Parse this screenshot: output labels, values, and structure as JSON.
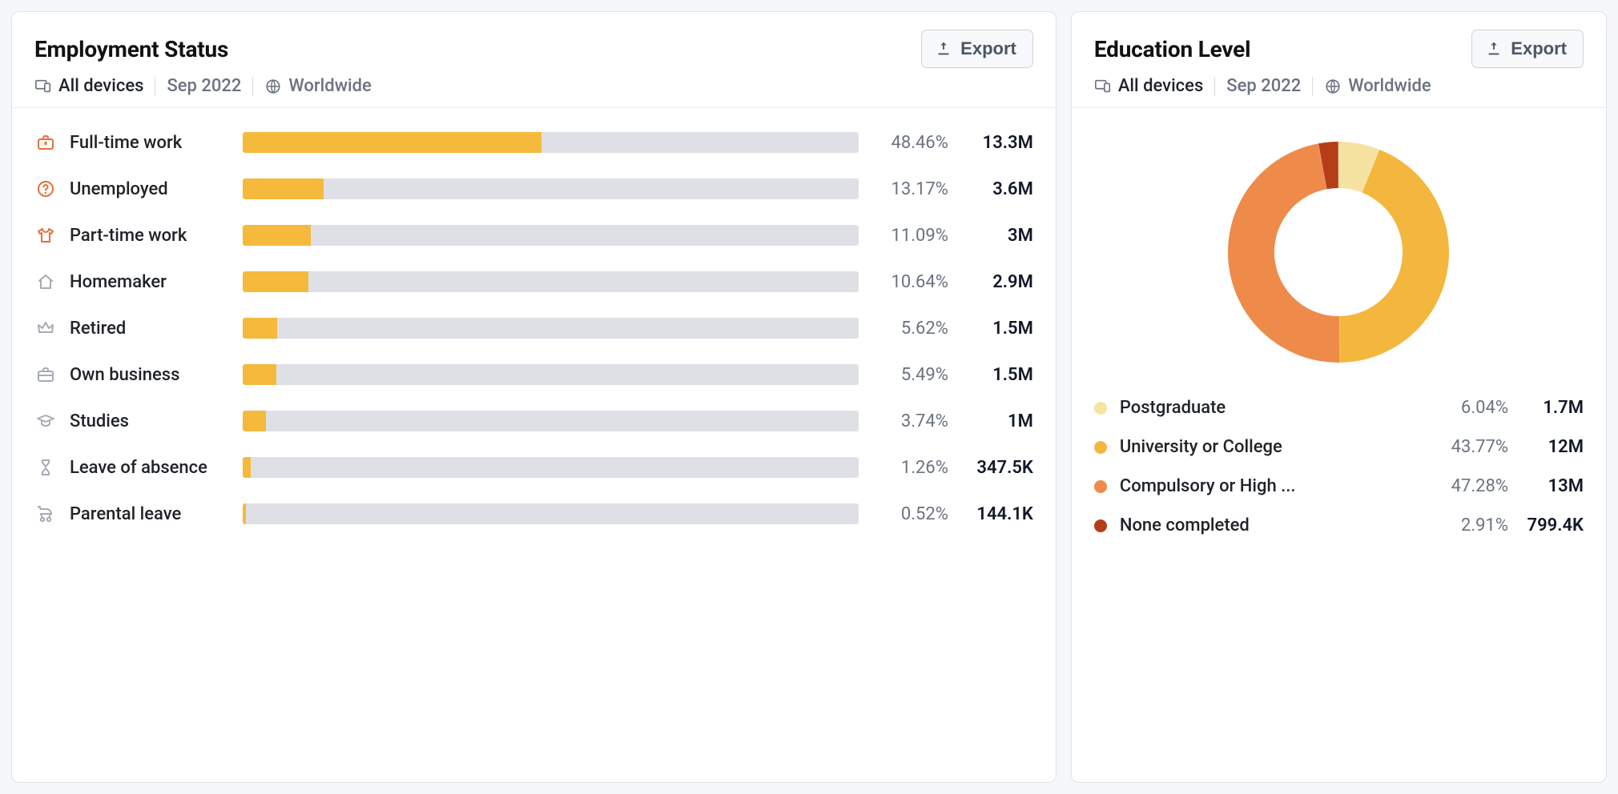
{
  "ui": {
    "export_label": "Export",
    "devices_label": "All devices",
    "period_label": "Sep 2022",
    "region_label": "Worldwide"
  },
  "colors": {
    "background_page": "#f6f7f9",
    "card_bg": "#ffffff",
    "card_border": "#dfe2e8",
    "text_primary": "#111827",
    "text_muted": "#6b7280",
    "bar_track": "#dee0e6",
    "bar_fill": "#f5b93c",
    "icon_orange": "#e96f3a",
    "icon_gray": "#a6abb4"
  },
  "employment": {
    "title": "Employment Status",
    "bar_max": 100,
    "items": [
      {
        "icon": "briefcase-fill",
        "icon_color": "#e96f3a",
        "label": "Full-time work",
        "pct": "48.46%",
        "pct_num": 48.46,
        "value": "13.3M"
      },
      {
        "icon": "question-circle",
        "icon_color": "#e96f3a",
        "label": "Unemployed",
        "pct": "13.17%",
        "pct_num": 13.17,
        "value": "3.6M"
      },
      {
        "icon": "tshirt",
        "icon_color": "#e96f3a",
        "label": "Part-time work",
        "pct": "11.09%",
        "pct_num": 11.09,
        "value": "3M"
      },
      {
        "icon": "home",
        "icon_color": "#a6abb4",
        "label": "Homemaker",
        "pct": "10.64%",
        "pct_num": 10.64,
        "value": "2.9M"
      },
      {
        "icon": "crown",
        "icon_color": "#a6abb4",
        "label": "Retired",
        "pct": "5.62%",
        "pct_num": 5.62,
        "value": "1.5M"
      },
      {
        "icon": "briefcase",
        "icon_color": "#a6abb4",
        "label": "Own business",
        "pct": "5.49%",
        "pct_num": 5.49,
        "value": "1.5M"
      },
      {
        "icon": "gradcap",
        "icon_color": "#a6abb4",
        "label": "Studies",
        "pct": "3.74%",
        "pct_num": 3.74,
        "value": "1M"
      },
      {
        "icon": "hourglass",
        "icon_color": "#a6abb4",
        "label": "Leave of absence",
        "pct": "1.26%",
        "pct_num": 1.26,
        "value": "347.5K"
      },
      {
        "icon": "stroller",
        "icon_color": "#a6abb4",
        "label": "Parental leave",
        "pct": "0.52%",
        "pct_num": 0.52,
        "value": "144.1K"
      }
    ]
  },
  "education": {
    "title": "Education Level",
    "donut": {
      "inner_ratio": 0.58,
      "start_angle_deg": 0
    },
    "items": [
      {
        "label": "Postgraduate",
        "pct": "6.04%",
        "pct_num": 6.04,
        "value": "1.7M",
        "color": "#f6e3a2"
      },
      {
        "label": "University or College",
        "pct": "43.77%",
        "pct_num": 43.77,
        "value": "12M",
        "color": "#f3b73e"
      },
      {
        "label": "Compulsory or High ...",
        "pct": "47.28%",
        "pct_num": 47.28,
        "value": "13M",
        "color": "#ee8b4a"
      },
      {
        "label": "None completed",
        "pct": "2.91%",
        "pct_num": 2.91,
        "value": "799.4K",
        "color": "#b63d19"
      }
    ]
  }
}
